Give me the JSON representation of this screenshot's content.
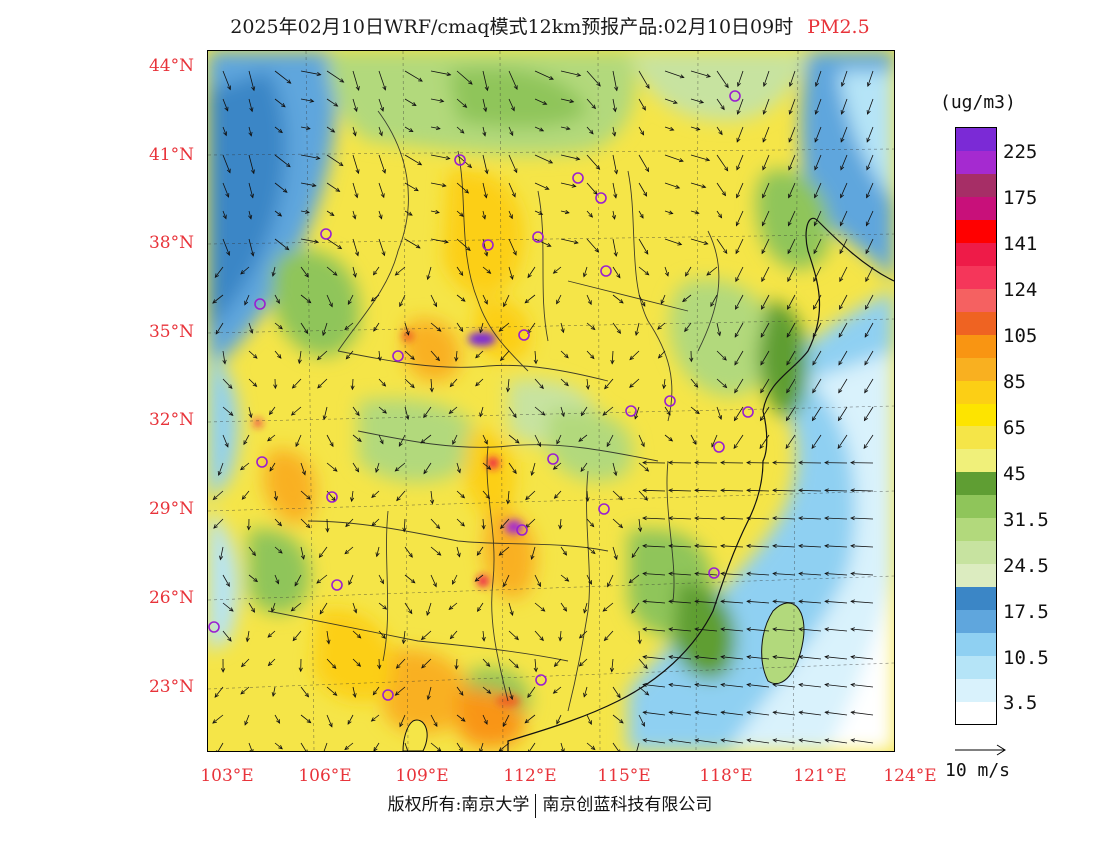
{
  "header": {
    "title": "2025年02月10日WRF/cmaq模式12km预报产品:02月10日09时",
    "species": "PM2.5"
  },
  "axes": {
    "lat_labels": [
      "44°N",
      "41°N",
      "38°N",
      "35°N",
      "32°N",
      "29°N",
      "26°N",
      "23°N"
    ],
    "lat_values": [
      44,
      41,
      38,
      35,
      32,
      29,
      26,
      23
    ],
    "lon_labels": [
      "103°E",
      "106°E",
      "109°E",
      "112°E",
      "115°E",
      "118°E",
      "121°E",
      "124°E"
    ],
    "lon_values": [
      103,
      106,
      109,
      112,
      115,
      118,
      121,
      124
    ]
  },
  "legend": {
    "unit": "(ug/m3)",
    "colors": [
      "#ffffff",
      "#d9f2fc",
      "#b5e4f7",
      "#8fd0f2",
      "#5fa6dd",
      "#3b86c6",
      "#dcecc0",
      "#c7e3a0",
      "#b2d97c",
      "#8fc55a",
      "#5f9e33",
      "#f0f07a",
      "#f5e548",
      "#fde400",
      "#fccf15",
      "#f9b020",
      "#f99512",
      "#ef6322",
      "#f56161",
      "#f5365a",
      "#ee1b48",
      "#ff0000",
      "#c8107a",
      "#a62e66",
      "#a52ad0",
      "#7b2ad6"
    ],
    "labels": [
      "3.5",
      "10.5",
      "17.5",
      "24.5",
      "31.5",
      "45",
      "65",
      "85",
      "105",
      "124",
      "141",
      "175",
      "225"
    ]
  },
  "wind_reference": "10 m/s",
  "footer": {
    "copyright": "版权所有:南京大学",
    "company": "南京创蓝科技有限公司"
  }
}
